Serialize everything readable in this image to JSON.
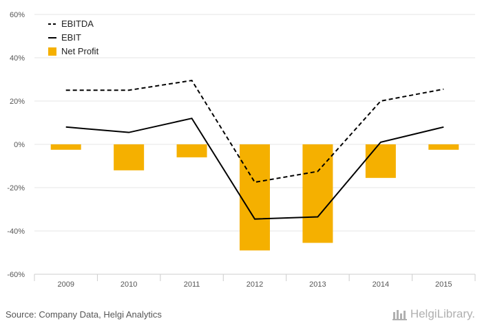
{
  "chart_data": {
    "type": "bar",
    "categories": [
      "2009",
      "2010",
      "2011",
      "2012",
      "2013",
      "2014",
      "2015"
    ],
    "series": [
      {
        "name": "EBITDA",
        "type": "line",
        "style": "dashed",
        "color": "#000000",
        "values": [
          25,
          25,
          29.5,
          -17.5,
          -12.5,
          20,
          25.5
        ]
      },
      {
        "name": "EBIT",
        "type": "line",
        "style": "solid",
        "color": "#000000",
        "values": [
          8,
          5.5,
          12,
          -34.5,
          -33.5,
          1,
          8
        ]
      },
      {
        "name": "Net Profit",
        "type": "bar",
        "color": "#f5b000",
        "values": [
          -2.5,
          -12,
          -6,
          -49,
          -45.5,
          -15.5,
          -2.5
        ]
      }
    ],
    "ylim": [
      -60,
      60
    ],
    "yticks": [
      60,
      40,
      20,
      0,
      -20,
      -40,
      -60
    ],
    "ytick_labels": [
      "60%",
      "40%",
      "20%",
      "0%",
      "-20%",
      "-40%",
      "-60%"
    ],
    "grid": true,
    "legend": "top-left"
  },
  "footer": {
    "source": "Source: Company Data, Helgi Analytics",
    "brand": "HelgiLibrary."
  },
  "colors": {
    "bar": "#f5b000",
    "grid": "#e6e6e6",
    "axis": "#cccccc"
  }
}
